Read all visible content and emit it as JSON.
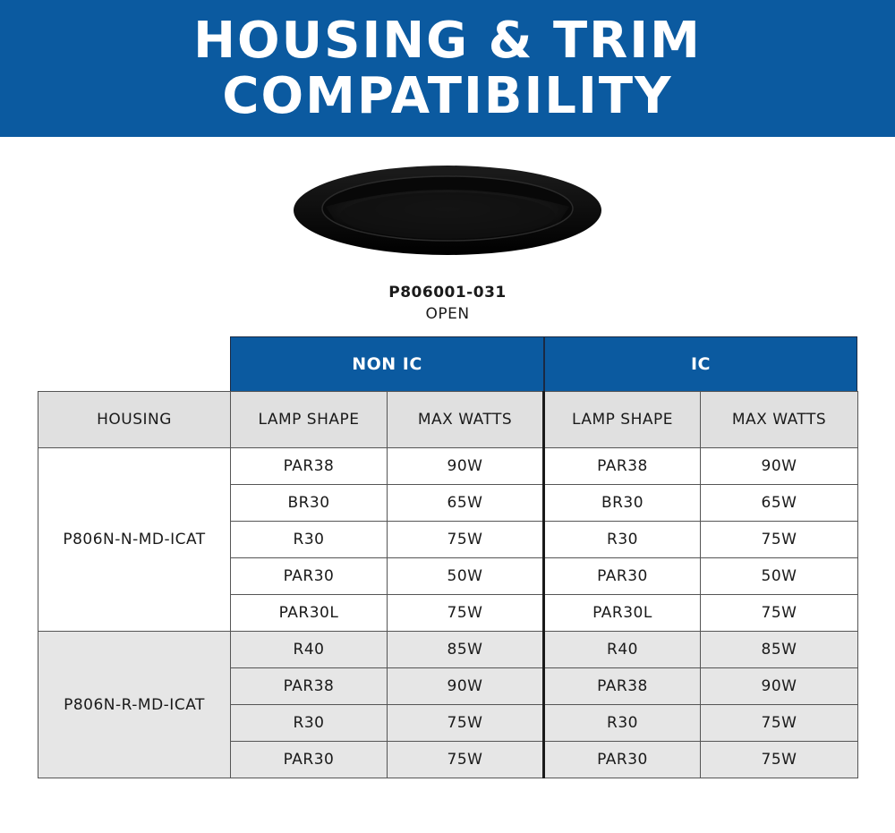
{
  "banner": {
    "line1": "HOUSING & TRIM",
    "line2": "COMPATIBILITY",
    "color": "#0b5aa0"
  },
  "product": {
    "code": "P806001-031",
    "finish": "OPEN",
    "image_icon": "black-recessed-trim-image"
  },
  "table": {
    "groups": [
      "NON IC",
      "IC"
    ],
    "headers": {
      "housing": "HOUSING",
      "lamp_shape": "LAMP SHAPE",
      "max_watts": "MAX WATTS"
    },
    "housings": [
      {
        "name": "P806N-N-MD-ICAT",
        "rows": [
          {
            "nonic_shape": "PAR38",
            "nonic_watts": "90W",
            "ic_shape": "PAR38",
            "ic_watts": "90W"
          },
          {
            "nonic_shape": "BR30",
            "nonic_watts": "65W",
            "ic_shape": "BR30",
            "ic_watts": "65W"
          },
          {
            "nonic_shape": "R30",
            "nonic_watts": "75W",
            "ic_shape": "R30",
            "ic_watts": "75W"
          },
          {
            "nonic_shape": "PAR30",
            "nonic_watts": "50W",
            "ic_shape": "PAR30",
            "ic_watts": "50W"
          },
          {
            "nonic_shape": "PAR30L",
            "nonic_watts": "75W",
            "ic_shape": "PAR30L",
            "ic_watts": "75W"
          }
        ]
      },
      {
        "name": "P806N-R-MD-ICAT",
        "rows": [
          {
            "nonic_shape": "R40",
            "nonic_watts": "85W",
            "ic_shape": "R40",
            "ic_watts": "85W"
          },
          {
            "nonic_shape": "PAR38",
            "nonic_watts": "90W",
            "ic_shape": "PAR38",
            "ic_watts": "90W"
          },
          {
            "nonic_shape": "R30",
            "nonic_watts": "75W",
            "ic_shape": "R30",
            "ic_watts": "75W"
          },
          {
            "nonic_shape": "PAR30",
            "nonic_watts": "75W",
            "ic_shape": "PAR30",
            "ic_watts": "75W"
          }
        ]
      }
    ]
  }
}
